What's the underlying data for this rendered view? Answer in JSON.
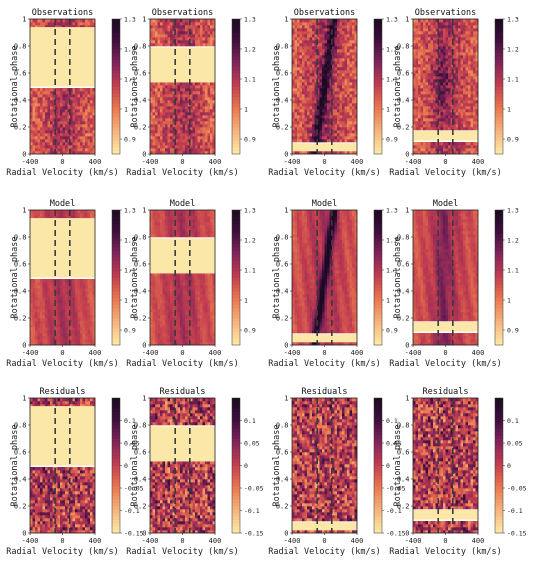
{
  "chart_data": {
    "type": "heatmap",
    "colormap": [
      "#fbe7a7",
      "#f6b179",
      "#e8764f",
      "#c23d4f",
      "#80245a",
      "#3c0f3b",
      "#1a0a1f"
    ],
    "row_titles": [
      "Observations",
      "Model",
      "Residuals"
    ],
    "xlabel": "Radial Velocity (km/s)",
    "ylabel": "Rotational phase",
    "xlim": [
      -400,
      400
    ],
    "ylim": [
      0,
      1
    ],
    "x_ticks": [
      "-400",
      "0",
      "400"
    ],
    "y_ticks": [
      "0",
      "0.2",
      "0.4",
      "0.6",
      "0.8",
      "1"
    ],
    "vsini_lines": [
      -90,
      90
    ],
    "colorbars": {
      "Observations": {
        "range": [
          0.85,
          1.3
        ],
        "ticks": [
          "0.9",
          "1",
          "1.1",
          "1.2",
          "1.3"
        ],
        "tick_values": [
          0.9,
          1.0,
          1.1,
          1.2,
          1.3
        ]
      },
      "Model": {
        "range": [
          0.85,
          1.3
        ],
        "ticks": [
          "0.9",
          "1",
          "1.1",
          "1.2",
          "1.3"
        ],
        "tick_values": [
          0.9,
          1.0,
          1.1,
          1.2,
          1.3
        ]
      },
      "Residuals": {
        "range": [
          -0.15,
          0.15
        ],
        "ticks": [
          "-0.15",
          "-0.1",
          "-0.05",
          "0",
          "0.05",
          "0.1"
        ],
        "tick_values": [
          -0.15,
          -0.1,
          -0.05,
          0.0,
          0.05,
          0.1
        ]
      }
    },
    "columns": [
      {
        "phase_gaps": [
          [
            0.5,
            0.94
          ]
        ]
      },
      {
        "phase_gaps": [
          [
            0.53,
            0.79
          ]
        ]
      },
      {
        "phase_gaps": [
          [
            0.02,
            0.08
          ]
        ]
      },
      {
        "phase_gaps": [
          [
            0.1,
            0.17
          ]
        ]
      }
    ]
  }
}
